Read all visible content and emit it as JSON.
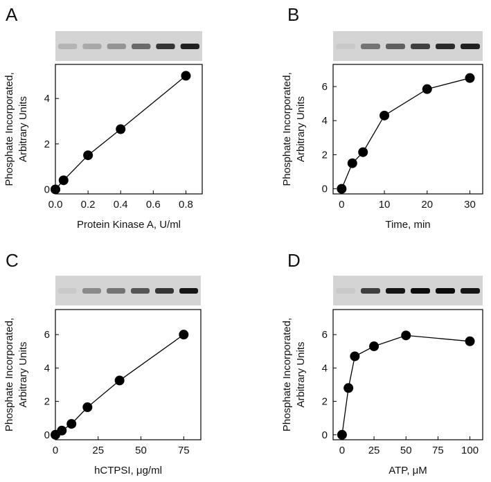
{
  "chart_data": [
    {
      "type": "line",
      "panel": "A",
      "ylabel": [
        "Phosphate Incorporated,",
        "Arbitrary Units"
      ],
      "xlabel": "Protein Kinase A, U/ml",
      "x": [
        0,
        0.05,
        0.2,
        0.4,
        0.8
      ],
      "values": [
        0,
        0.4,
        1.5,
        2.65,
        5.0
      ],
      "xlim": [
        0,
        0.9
      ],
      "ylim": [
        -0.2,
        5.5
      ],
      "xticks": [
        {
          "value": 0,
          "label": "0.0"
        },
        0.2,
        0.4,
        0.6,
        0.8
      ],
      "yticks": [
        0,
        2,
        4
      ],
      "color": "#000000"
    },
    {
      "type": "line",
      "panel": "B",
      "ylabel": [
        "Phosphate Incorporated,",
        "Arbitrary Units"
      ],
      "xlabel": "Time, min",
      "x": [
        0,
        2.5,
        5,
        10,
        20,
        30
      ],
      "values": [
        0,
        1.5,
        2.15,
        4.3,
        5.85,
        6.5
      ],
      "xlim": [
        -2,
        33
      ],
      "ylim": [
        -0.3,
        7.3
      ],
      "xticks": [
        0,
        10,
        20,
        30
      ],
      "yticks": [
        0,
        2,
        4,
        6
      ],
      "color": "#000000"
    },
    {
      "type": "line",
      "panel": "C",
      "ylabel": [
        "Phosphate Incorporated,",
        "Arbitrary Units"
      ],
      "xlabel": "hCTPSI, μg/ml",
      "x": [
        0,
        3.75,
        9.4,
        18.75,
        37.5,
        75
      ],
      "values": [
        0,
        0.25,
        0.65,
        1.65,
        3.25,
        6.0
      ],
      "xlim": [
        0,
        85
      ],
      "ylim": [
        -0.3,
        7.5
      ],
      "xticks": [
        0,
        25,
        50,
        75
      ],
      "yticks": [
        0,
        2,
        4,
        6
      ],
      "color": "#000000"
    },
    {
      "type": "line",
      "panel": "D",
      "ylabel": [
        "Phosphate Incorporated,",
        "Arbitrary Units"
      ],
      "xlabel": "ATP, μM",
      "x": [
        0,
        5,
        10,
        25,
        50,
        100
      ],
      "values": [
        0,
        2.8,
        4.7,
        5.3,
        5.95,
        5.6
      ],
      "xlim": [
        -7,
        110
      ],
      "ylim": [
        -0.3,
        7.5
      ],
      "xticks": [
        0,
        25,
        50,
        75,
        100
      ],
      "yticks": [
        0,
        2,
        4,
        6
      ],
      "color": "#000000"
    }
  ]
}
